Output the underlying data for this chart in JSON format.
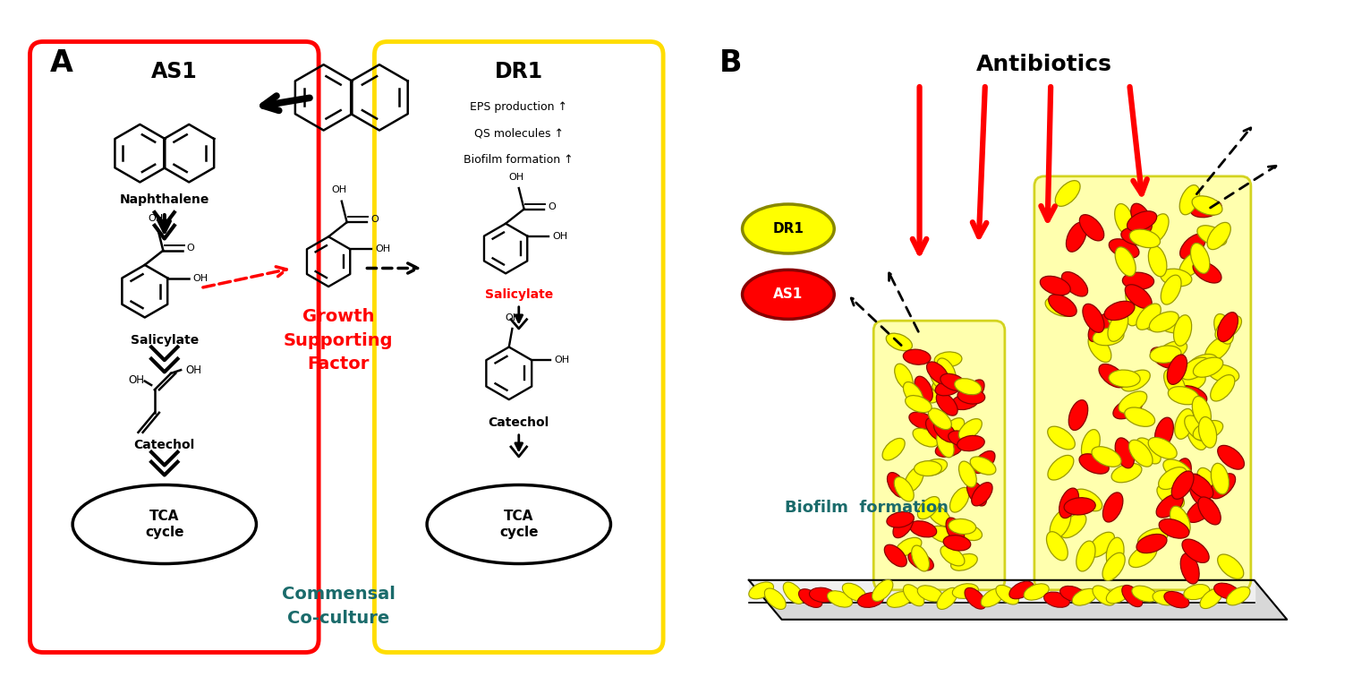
{
  "panel_A_label": "A",
  "panel_B_label": "B",
  "AS1_label": "AS1",
  "DR1_label": "DR1",
  "naphthalene_label": "Naphthalene",
  "salicylate_label": "Salicylate",
  "salicylate_red_label": "Salicylate",
  "catechol_label": "Catechol",
  "tca_label": "TCA\ncycle",
  "growth_supporting": "Growth\nSupporting\nFactor",
  "commensal": "Commensal\nCo-culture",
  "DR1_text1": "EPS production ↑",
  "DR1_text2": "QS molecules ↑",
  "DR1_text3": "Biofilm formation ↑",
  "antibiotics_label": "Antibiotics",
  "biofilm_label": "Biofilm  formation",
  "bg_color": "#ffffff",
  "red_color": "#ff0000",
  "yellow_color": "#ffff00",
  "yellow_light": "#fffff0",
  "blue_label_color": "#1a6b6b",
  "outer_box_color": "#111111",
  "red_box_color": "#ff0000",
  "yellow_box_color": "#ffdd00",
  "arrow_black": "#000000",
  "arrow_red": "#ff0000"
}
